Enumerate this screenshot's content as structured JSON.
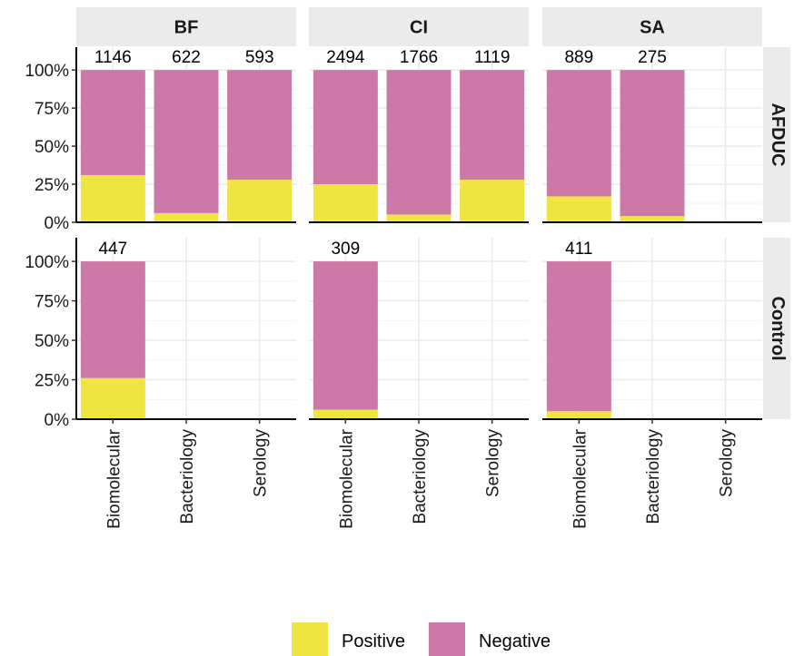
{
  "chart_data": {
    "type": "bar",
    "stacked": true,
    "normalized": true,
    "facet_columns": [
      "BF",
      "CI",
      "SA"
    ],
    "facet_rows": [
      "AFDUC",
      "Control"
    ],
    "categories": [
      "Biomolecular",
      "Bacteriology",
      "Serology"
    ],
    "y_ticks": [
      "0%",
      "25%",
      "50%",
      "75%",
      "100%"
    ],
    "ylim": [
      0,
      1
    ],
    "grid": true,
    "legend_position": "bottom",
    "series": [
      {
        "name": "Positive",
        "color": "#EEE442"
      },
      {
        "name": "Negative",
        "color": "#CC79A7"
      }
    ],
    "cells": [
      {
        "row": "AFDUC",
        "col": "BF",
        "bars": [
          {
            "category": "Biomolecular",
            "n": "1146",
            "positive": 0.31
          },
          {
            "category": "Bacteriology",
            "n": "622",
            "positive": 0.06
          },
          {
            "category": "Serology",
            "n": "593",
            "positive": 0.28
          }
        ]
      },
      {
        "row": "AFDUC",
        "col": "CI",
        "bars": [
          {
            "category": "Biomolecular",
            "n": "2494",
            "positive": 0.25
          },
          {
            "category": "Bacteriology",
            "n": "1766",
            "positive": 0.05
          },
          {
            "category": "Serology",
            "n": "1119",
            "positive": 0.28
          }
        ]
      },
      {
        "row": "AFDUC",
        "col": "SA",
        "bars": [
          {
            "category": "Biomolecular",
            "n": "889",
            "positive": 0.17
          },
          {
            "category": "Bacteriology",
            "n": "275",
            "positive": 0.04
          }
        ]
      },
      {
        "row": "Control",
        "col": "BF",
        "bars": [
          {
            "category": "Biomolecular",
            "n": "447",
            "positive": 0.26
          }
        ]
      },
      {
        "row": "Control",
        "col": "CI",
        "bars": [
          {
            "category": "Biomolecular",
            "n": "309",
            "positive": 0.06
          }
        ]
      },
      {
        "row": "Control",
        "col": "SA",
        "bars": [
          {
            "category": "Biomolecular",
            "n": "411",
            "positive": 0.05
          }
        ]
      }
    ]
  }
}
